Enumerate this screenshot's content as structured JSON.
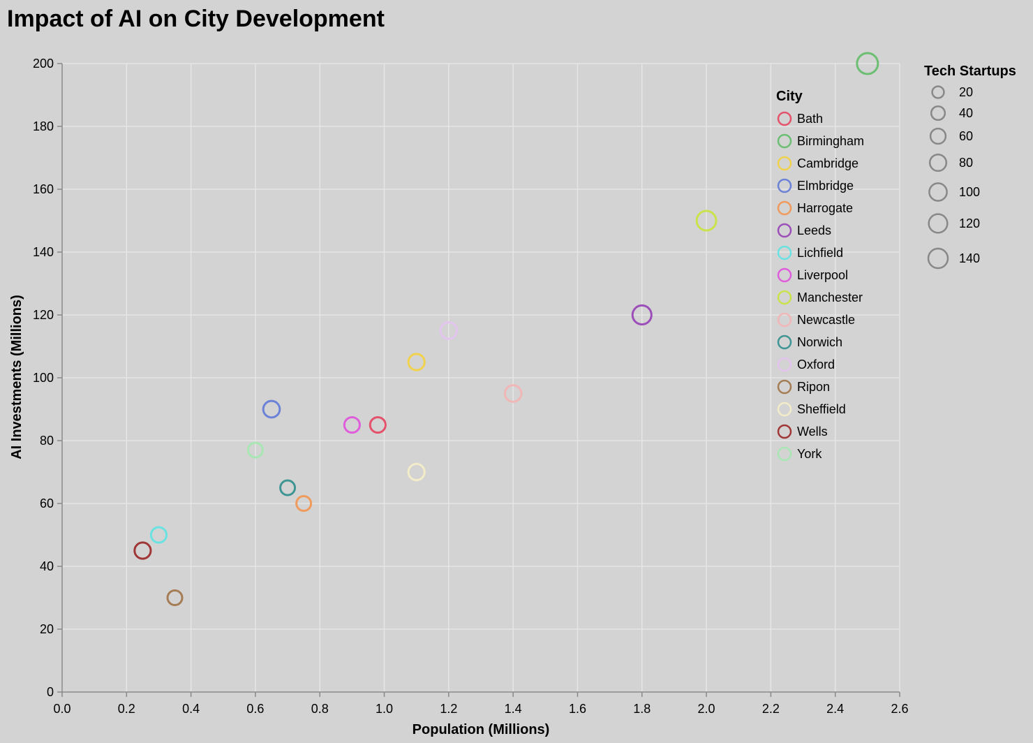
{
  "chart_data": {
    "type": "scatter",
    "title": "Impact of AI on City Development",
    "xlabel": "Population (Millions)",
    "ylabel": "AI Investments (Millions)",
    "xlim": [
      0,
      2.6
    ],
    "ylim": [
      0,
      200
    ],
    "x_ticks": [
      "0.0",
      "0.2",
      "0.4",
      "0.6",
      "0.8",
      "1.0",
      "1.2",
      "1.4",
      "1.6",
      "1.8",
      "2.0",
      "2.2",
      "2.4",
      "2.6"
    ],
    "y_ticks": [
      "0",
      "20",
      "40",
      "60",
      "80",
      "100",
      "120",
      "140",
      "160",
      "180",
      "200"
    ],
    "grid": true,
    "color_legend": {
      "title": "City",
      "position": "right"
    },
    "size_legend": {
      "title": "Tech Startups",
      "values": [
        20,
        40,
        60,
        80,
        100,
        120,
        140
      ],
      "labels": [
        "20",
        "40",
        "60",
        "80",
        "100",
        "120",
        "140"
      ]
    },
    "points": [
      {
        "city": "Bath",
        "population": 0.98,
        "ai_investment": 85,
        "tech_startups": 55,
        "color": "#e4526b"
      },
      {
        "city": "Birmingham",
        "population": 2.5,
        "ai_investment": 200,
        "tech_startups": 150,
        "color": "#6cbf72"
      },
      {
        "city": "Cambridge",
        "population": 1.1,
        "ai_investment": 105,
        "tech_startups": 65,
        "color": "#f0d24c"
      },
      {
        "city": "Elmbridge",
        "population": 0.65,
        "ai_investment": 90,
        "tech_startups": 70,
        "color": "#6b82d7"
      },
      {
        "city": "Harrogate",
        "population": 0.75,
        "ai_investment": 60,
        "tech_startups": 45,
        "color": "#f09a5b"
      },
      {
        "city": "Leeds",
        "population": 1.8,
        "ai_investment": 120,
        "tech_startups": 110,
        "color": "#9c4fb8"
      },
      {
        "city": "Lichfield",
        "population": 0.3,
        "ai_investment": 50,
        "tech_startups": 55,
        "color": "#6ae2e2"
      },
      {
        "city": "Liverpool",
        "population": 0.9,
        "ai_investment": 85,
        "tech_startups": 55,
        "color": "#df5ddb"
      },
      {
        "city": "Manchester",
        "population": 2.0,
        "ai_investment": 150,
        "tech_startups": 120,
        "color": "#c8e34c"
      },
      {
        "city": "Newcastle",
        "population": 1.4,
        "ai_investment": 95,
        "tech_startups": 70,
        "color": "#f1b6b6"
      },
      {
        "city": "Norwich",
        "population": 0.7,
        "ai_investment": 65,
        "tech_startups": 45,
        "color": "#3f9494"
      },
      {
        "city": "Oxford",
        "population": 1.2,
        "ai_investment": 115,
        "tech_startups": 70,
        "color": "#e2c4ef"
      },
      {
        "city": "Ripon",
        "population": 0.35,
        "ai_investment": 30,
        "tech_startups": 45,
        "color": "#a57d55"
      },
      {
        "city": "Sheffield",
        "population": 1.1,
        "ai_investment": 70,
        "tech_startups": 65,
        "color": "#f3ecc8"
      },
      {
        "city": "Wells",
        "population": 0.25,
        "ai_investment": 45,
        "tech_startups": 65,
        "color": "#a03636"
      },
      {
        "city": "York",
        "population": 0.6,
        "ai_investment": 77,
        "tech_startups": 45,
        "color": "#a8e6b4"
      }
    ]
  }
}
